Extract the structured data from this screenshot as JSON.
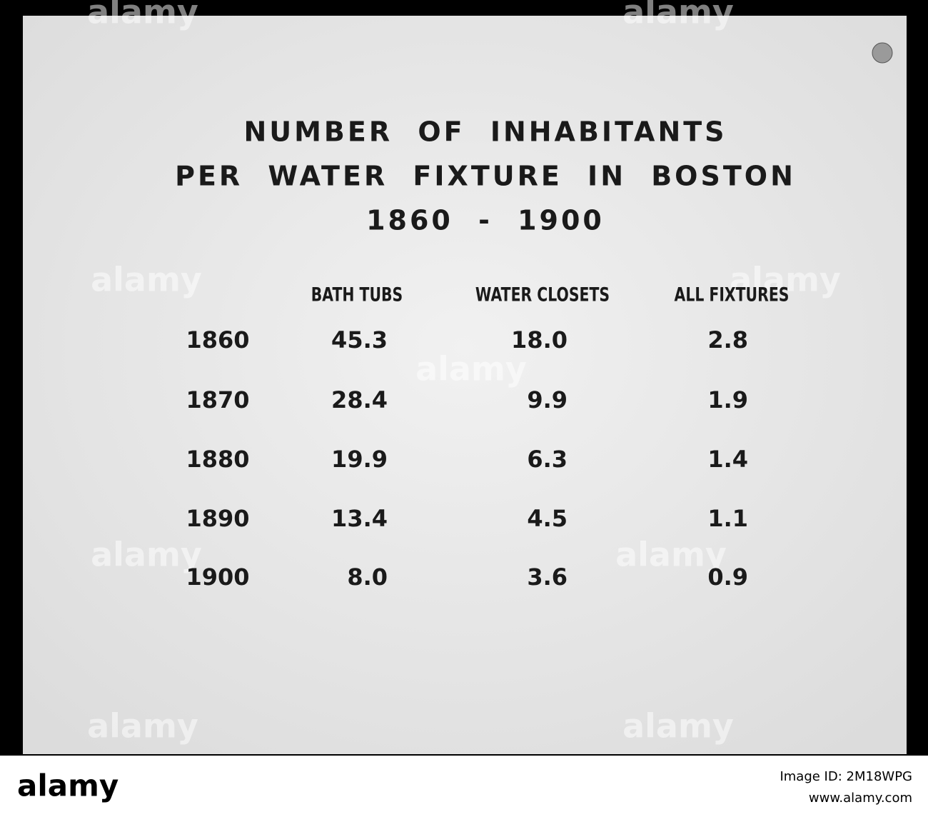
{
  "document": {
    "title_lines": [
      "NUMBER OF INHABITANTS",
      "PER WATER FIXTURE IN BOSTON",
      "1860 - 1900"
    ],
    "table": {
      "header": [
        "BATH TUBS",
        "WATER CLOSETS",
        "ALL FIXTURES"
      ],
      "rows": [
        [
          "1860",
          "45.3",
          "18.0",
          "2.8"
        ],
        [
          "1870",
          "28.4",
          "9.9",
          "1.9"
        ],
        [
          "1880",
          "19.9",
          "6.3",
          "1.4"
        ],
        [
          "1890",
          "13.4",
          "4.5",
          "1.1"
        ],
        [
          "1900",
          "8.0",
          "3.6",
          "0.9"
        ]
      ]
    }
  },
  "watermark": "alamy",
  "footer": {
    "logo": "alamy",
    "image_id": "Image ID: 2M18WPG",
    "url": "www.alamy.com"
  }
}
